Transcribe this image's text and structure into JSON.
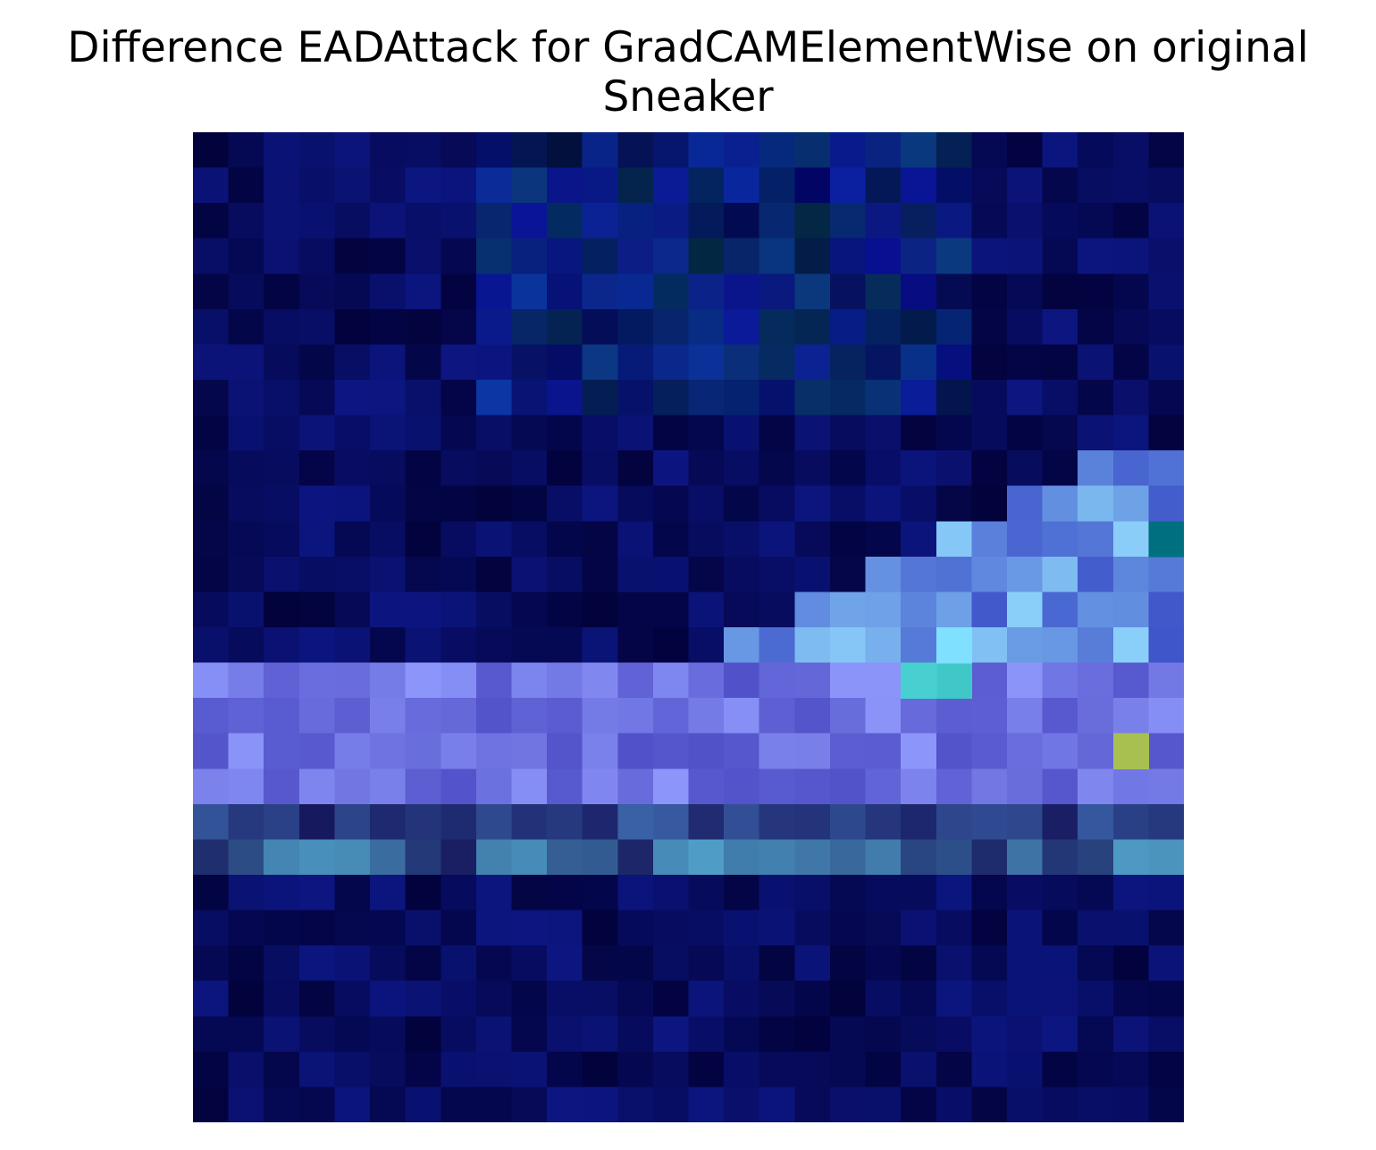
{
  "figure": {
    "title_line1": "Difference EADAttack for GradCAMElementWise on original",
    "title_line2": "Sneaker"
  },
  "image": {
    "subject": "sneaker difference heatmap",
    "background_color": "#03034a",
    "stripe_colors": [
      "#7f7fe8",
      "#6c6cd0",
      "#5aa8e8",
      "#48d0d0",
      "#a8c050",
      "#2a2a9a"
    ]
  }
}
